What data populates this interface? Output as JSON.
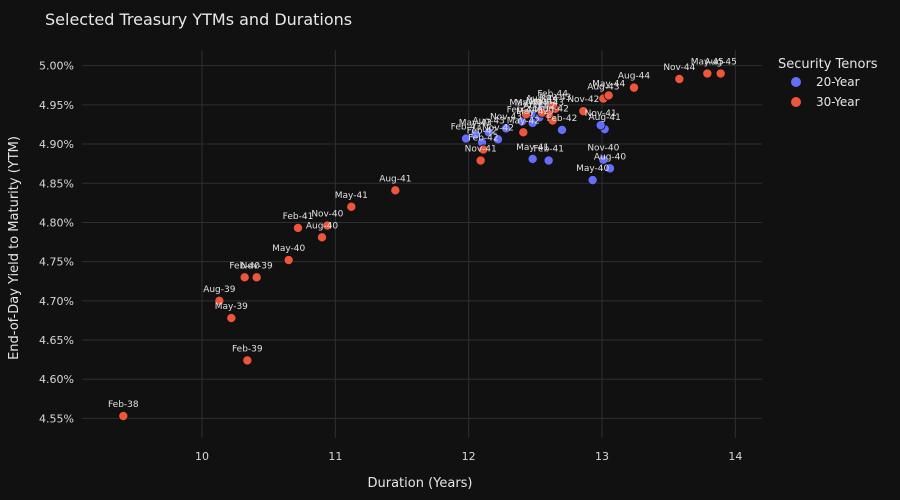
{
  "chart_data": {
    "type": "scatter",
    "title": "Selected Treasury YTMs and Durations",
    "xlabel": "Duration (Years)",
    "ylabel": "End-of-Day Yield to Maturity (YTM)",
    "xlim": [
      9.1,
      14.2
    ],
    "ylim": [
      4.525,
      5.02
    ],
    "x_ticks": [
      10,
      11,
      12,
      13,
      14
    ],
    "y_ticks": [
      4.55,
      4.6,
      4.65,
      4.7,
      4.75,
      4.8,
      4.85,
      4.9,
      4.95,
      5.0
    ],
    "y_tick_format": "percent_2dp",
    "grid": true,
    "legend": {
      "title": "Security Tenors",
      "placement": "right"
    },
    "series": [
      {
        "name": "20-Year",
        "color": "#636EFA",
        "points": [
          {
            "x": 12.93,
            "y": 4.854,
            "label": "May-40"
          },
          {
            "x": 13.06,
            "y": 4.869,
            "label": "Aug-40"
          },
          {
            "x": 13.01,
            "y": 4.88,
            "label": "Nov-40"
          },
          {
            "x": 12.6,
            "y": 4.879,
            "label": "Feb-41"
          },
          {
            "x": 12.48,
            "y": 4.881,
            "label": "May-41"
          },
          {
            "x": 13.02,
            "y": 4.919,
            "label": "Aug-41"
          },
          {
            "x": 12.99,
            "y": 4.924,
            "label": "Nov-41"
          },
          {
            "x": 12.7,
            "y": 4.918,
            "label": "Feb-42"
          },
          {
            "x": 12.48,
            "y": 4.927,
            "label": "May-42"
          },
          {
            "x": 12.53,
            "y": 4.934,
            "label": "Aug-42"
          },
          {
            "x": 12.22,
            "y": 4.906,
            "label": "Nov-42"
          },
          {
            "x": 11.98,
            "y": 4.907,
            "label": "Feb-43"
          },
          {
            "x": 12.05,
            "y": 4.912,
            "label": "May-43"
          },
          {
            "x": 12.15,
            "y": 4.915,
            "label": "Aug-43"
          },
          {
            "x": 12.28,
            "y": 4.92,
            "label": "Nov-43"
          },
          {
            "x": 12.4,
            "y": 4.929,
            "label": "Feb-44"
          },
          {
            "x": 12.47,
            "y": 4.938,
            "label": "May-44"
          },
          {
            "x": 12.55,
            "y": 4.943,
            "label": "Aug-44"
          },
          {
            "x": 12.1,
            "y": 4.902,
            "label": "Feb-42"
          }
        ]
      },
      {
        "name": "30-Year",
        "color": "#EF553B",
        "points": [
          {
            "x": 9.41,
            "y": 4.553,
            "label": "Feb-38"
          },
          {
            "x": 10.34,
            "y": 4.624,
            "label": "Feb-39"
          },
          {
            "x": 10.22,
            "y": 4.678,
            "label": "May-39"
          },
          {
            "x": 10.13,
            "y": 4.7,
            "label": "Aug-39"
          },
          {
            "x": 10.41,
            "y": 4.73,
            "label": "Nov-39"
          },
          {
            "x": 10.32,
            "y": 4.73,
            "label": "Feb-40"
          },
          {
            "x": 10.65,
            "y": 4.752,
            "label": "May-40"
          },
          {
            "x": 10.9,
            "y": 4.781,
            "label": "Aug-40"
          },
          {
            "x": 10.94,
            "y": 4.796,
            "label": "Nov-40"
          },
          {
            "x": 10.72,
            "y": 4.793,
            "label": "Feb-41"
          },
          {
            "x": 11.12,
            "y": 4.82,
            "label": "May-41"
          },
          {
            "x": 11.45,
            "y": 4.841,
            "label": "Aug-41"
          },
          {
            "x": 12.09,
            "y": 4.879,
            "label": "Nov-41"
          },
          {
            "x": 12.11,
            "y": 4.893,
            "label": "Feb-42"
          },
          {
            "x": 12.41,
            "y": 4.915,
            "label": "May-42"
          },
          {
            "x": 12.63,
            "y": 4.93,
            "label": "Aug-42"
          },
          {
            "x": 12.86,
            "y": 4.942,
            "label": "Nov-42"
          },
          {
            "x": 12.6,
            "y": 4.938,
            "label": "Feb-43"
          },
          {
            "x": 12.43,
            "y": 4.938,
            "label": "May-43"
          },
          {
            "x": 13.01,
            "y": 4.958,
            "label": "Aug-43"
          },
          {
            "x": 12.65,
            "y": 4.945,
            "label": "Nov-43"
          },
          {
            "x": 12.63,
            "y": 4.949,
            "label": "Feb-44"
          },
          {
            "x": 13.05,
            "y": 4.962,
            "label": "May-44"
          },
          {
            "x": 13.24,
            "y": 4.972,
            "label": "Aug-44"
          },
          {
            "x": 13.58,
            "y": 4.983,
            "label": "Nov-44"
          },
          {
            "x": 13.79,
            "y": 4.99,
            "label": "May-45"
          },
          {
            "x": 13.89,
            "y": 4.99,
            "label": "Aug-45"
          },
          {
            "x": 12.55,
            "y": 4.94,
            "label": "Nov-43"
          }
        ]
      }
    ]
  }
}
